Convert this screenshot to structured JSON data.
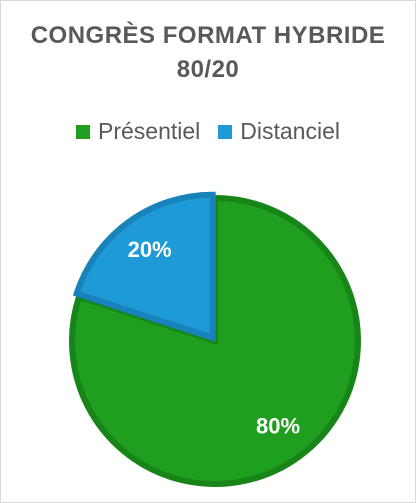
{
  "chart_data": {
    "type": "pie",
    "title": "CONGRÈS FORMAT HYBRIDE 80/20",
    "categories": [
      "Présentiel",
      "Distanciel"
    ],
    "values": [
      80,
      20
    ],
    "value_labels": [
      "80%",
      "20%"
    ],
    "colors": [
      "#1f9e1f",
      "#1e9ad6"
    ],
    "legend": "top"
  }
}
